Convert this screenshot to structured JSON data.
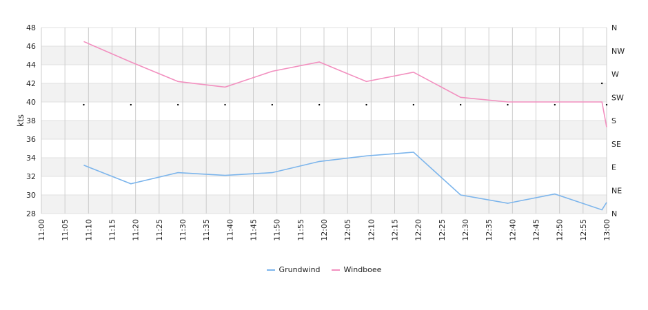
{
  "chart_data": {
    "type": "line",
    "ylabel": "kts",
    "ylim": [
      28,
      48
    ],
    "yticks": [
      "28",
      "30",
      "32",
      "34",
      "36",
      "38",
      "40",
      "42",
      "44",
      "46",
      "48"
    ],
    "y2ticks": [
      "N",
      "NE",
      "E",
      "SE",
      "S",
      "SW",
      "W",
      "NW",
      "N"
    ],
    "xlim": [
      "11:00",
      "13:00"
    ],
    "xticks": [
      "11:00",
      "11:05",
      "11:10",
      "11:15",
      "11:20",
      "11:25",
      "11:30",
      "11:35",
      "11:40",
      "11:45",
      "11:50",
      "11:55",
      "12:00",
      "12:05",
      "12:10",
      "12:15",
      "12:20",
      "12:25",
      "12:30",
      "12:35",
      "12:40",
      "12:45",
      "12:50",
      "12:55",
      "13:00"
    ],
    "grid": true,
    "legend_position": "bottom-center",
    "series": [
      {
        "name": "Grundwind",
        "color": "#7cb5ec",
        "x": [
          "11:09",
          "11:19",
          "11:29",
          "11:39",
          "11:49",
          "11:59",
          "12:09",
          "12:19",
          "12:29",
          "12:39",
          "12:49",
          "12:59",
          "13:00"
        ],
        "values": [
          33.2,
          31.2,
          32.4,
          32.1,
          32.4,
          33.6,
          34.2,
          34.6,
          30.0,
          29.1,
          30.1,
          28.4,
          29.2
        ]
      },
      {
        "name": "Windboee",
        "color": "#f28fbf",
        "x": [
          "11:09",
          "11:19",
          "11:29",
          "11:39",
          "11:49",
          "11:59",
          "12:09",
          "12:19",
          "12:29",
          "12:39",
          "12:49",
          "12:59",
          "13:00"
        ],
        "values": [
          46.5,
          44.3,
          42.2,
          41.6,
          43.3,
          44.3,
          42.2,
          43.2,
          40.5,
          40.0,
          40.0,
          40.0,
          37.3
        ]
      }
    ],
    "direction_marks": {
      "x": [
        "11:09",
        "11:19",
        "11:29",
        "11:39",
        "11:49",
        "11:59",
        "12:09",
        "12:19",
        "12:29",
        "12:39",
        "12:49",
        "12:59",
        "13:00"
      ],
      "values": [
        39.7,
        39.7,
        39.7,
        39.7,
        39.7,
        39.7,
        39.7,
        39.7,
        39.7,
        39.7,
        39.7,
        42.0,
        39.7
      ]
    }
  }
}
